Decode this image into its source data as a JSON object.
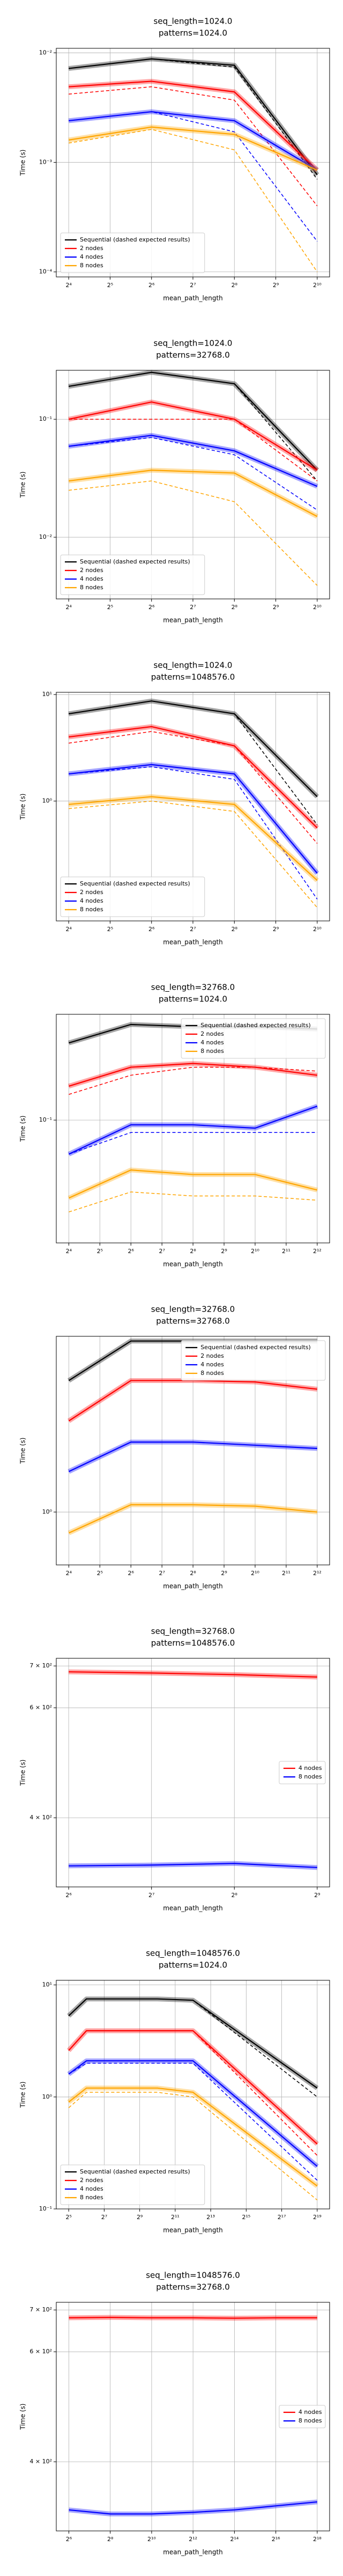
{
  "chart_data": [
    {
      "type": "line",
      "title": "seq_length=1024.0",
      "subtitle": "patterns=1024.0",
      "xlabel": "mean_path_length",
      "ylabel": "Time (s)",
      "xscale": "log",
      "yscale": "log",
      "grid": true,
      "legend": "lower left",
      "x": [
        16,
        64,
        256,
        1024
      ],
      "xlim": [
        13,
        1260
      ],
      "xticks": [
        {
          "value": 16,
          "label": "2⁴"
        },
        {
          "value": 32,
          "label": "2⁵"
        },
        {
          "value": 64,
          "label": "2⁶"
        },
        {
          "value": 128,
          "label": "2⁷"
        },
        {
          "value": 256,
          "label": "2⁸"
        },
        {
          "value": 512,
          "label": "2⁹"
        },
        {
          "value": 1024,
          "label": "2¹⁰"
        }
      ],
      "ylim": [
        9e-05,
        0.011
      ],
      "yticks": [
        {
          "value": 0.0001,
          "label": "10⁻⁴"
        },
        {
          "value": 0.001,
          "label": "10⁻³"
        },
        {
          "value": 0.01,
          "label": "10⁻²"
        }
      ],
      "series": [
        {
          "name": "Sequential (dashed expected results)",
          "color": "#000000",
          "values": [
            0.0072,
            0.0088,
            0.0077,
            0.00077
          ],
          "expected": [
            0.0072,
            0.0088,
            0.0074,
            0.0007
          ]
        },
        {
          "name": "2 nodes",
          "color": "#ff0000",
          "values": [
            0.0049,
            0.0055,
            0.0044,
            0.00085
          ],
          "expected": [
            0.0042,
            0.0049,
            0.0037,
            0.0004
          ]
        },
        {
          "name": "4 nodes",
          "color": "#0000ff",
          "values": [
            0.0024,
            0.0029,
            0.0024,
            0.00085
          ],
          "expected": [
            0.0024,
            0.0029,
            0.0019,
            0.00019
          ]
        },
        {
          "name": "8 nodes",
          "color": "#ffa500",
          "values": [
            0.0016,
            0.0021,
            0.0018,
            0.00085
          ],
          "expected": [
            0.0015,
            0.002,
            0.0013,
            0.0001
          ]
        }
      ]
    },
    {
      "type": "line",
      "title": "seq_length=1024.0",
      "subtitle": "patterns=32768.0",
      "xlabel": "mean_path_length",
      "ylabel": "Time (s)",
      "xscale": "log",
      "yscale": "log",
      "grid": true,
      "legend": "lower left",
      "x": [
        16,
        64,
        256,
        1024
      ],
      "xlim": [
        13,
        1260
      ],
      "xticks": [
        {
          "value": 16,
          "label": "2⁴"
        },
        {
          "value": 32,
          "label": "2⁵"
        },
        {
          "value": 64,
          "label": "2⁶"
        },
        {
          "value": 128,
          "label": "2⁷"
        },
        {
          "value": 256,
          "label": "2⁸"
        },
        {
          "value": 512,
          "label": "2⁹"
        },
        {
          "value": 1024,
          "label": "2¹⁰"
        }
      ],
      "ylim": [
        0.003,
        0.26
      ],
      "yticks": [
        {
          "value": 0.01,
          "label": "10⁻²"
        },
        {
          "value": 0.1,
          "label": "10⁻¹"
        }
      ],
      "series": [
        {
          "name": "Sequential (dashed expected results)",
          "color": "#000000",
          "values": [
            0.19,
            0.25,
            0.2,
            0.037
          ],
          "expected": [
            0.19,
            0.25,
            0.2,
            0.03
          ]
        },
        {
          "name": "2 nodes",
          "color": "#ff0000",
          "values": [
            0.1,
            0.14,
            0.1,
            0.037
          ],
          "expected": [
            0.1,
            0.1,
            0.1,
            0.03
          ]
        },
        {
          "name": "4 nodes",
          "color": "#0000ff",
          "values": [
            0.059,
            0.073,
            0.054,
            0.027
          ],
          "expected": [
            0.059,
            0.07,
            0.05,
            0.017
          ]
        },
        {
          "name": "8 nodes",
          "color": "#ffa500",
          "values": [
            0.03,
            0.037,
            0.035,
            0.015
          ],
          "expected": [
            0.025,
            0.03,
            0.02,
            0.0039
          ]
        }
      ]
    },
    {
      "type": "line",
      "title": "seq_length=1024.0",
      "subtitle": "patterns=1048576.0",
      "xlabel": "mean_path_length",
      "ylabel": "Time (s)",
      "xscale": "log",
      "yscale": "log",
      "grid": true,
      "legend": "lower left",
      "x": [
        16,
        64,
        256,
        1024
      ],
      "xlim": [
        13,
        1260
      ],
      "xticks": [
        {
          "value": 16,
          "label": "2⁴"
        },
        {
          "value": 32,
          "label": "2⁵"
        },
        {
          "value": 64,
          "label": "2⁶"
        },
        {
          "value": 128,
          "label": "2⁷"
        },
        {
          "value": 256,
          "label": "2⁸"
        },
        {
          "value": 512,
          "label": "2⁹"
        },
        {
          "value": 1024,
          "label": "2¹⁰"
        }
      ],
      "ylim": [
        0.075,
        10.5
      ],
      "yticks": [
        {
          "value": 1,
          "label": "10⁰"
        },
        {
          "value": 10,
          "label": "10¹"
        }
      ],
      "series": [
        {
          "name": "Sequential (dashed expected results)",
          "color": "#000000",
          "values": [
            6.6,
            8.7,
            6.6,
            1.1
          ],
          "expected": [
            6.6,
            8.7,
            6.6,
            0.6
          ]
        },
        {
          "name": "2 nodes",
          "color": "#ff0000",
          "values": [
            4,
            5,
            3.3,
            0.56
          ],
          "expected": [
            3.5,
            4.5,
            3.3,
            0.4
          ]
        },
        {
          "name": "4 nodes",
          "color": "#0000ff",
          "values": [
            1.8,
            2.2,
            1.8,
            0.21
          ],
          "expected": [
            1.8,
            2.1,
            1.6,
            0.12
          ]
        },
        {
          "name": "8 nodes",
          "color": "#ffa500",
          "values": [
            0.93,
            1.1,
            0.93,
            0.18
          ],
          "expected": [
            0.85,
            1,
            0.8,
            0.1
          ]
        }
      ]
    },
    {
      "type": "line",
      "title": "seq_length=32768.0",
      "subtitle": "patterns=1024.0",
      "xlabel": "mean_path_length",
      "ylabel": "Time (s)",
      "xscale": "log",
      "yscale": "log",
      "grid": true,
      "legend": "upper right",
      "x": [
        16,
        64,
        256,
        1024,
        4096
      ],
      "xlim": [
        12.1,
        5400
      ],
      "xticks": [
        {
          "value": 16,
          "label": "2⁴"
        },
        {
          "value": 32,
          "label": "2⁵"
        },
        {
          "value": 64,
          "label": "2⁶"
        },
        {
          "value": 128,
          "label": "2⁷"
        },
        {
          "value": 256,
          "label": "2⁸"
        },
        {
          "value": 512,
          "label": "2⁹"
        },
        {
          "value": 1024,
          "label": "2¹⁰"
        },
        {
          "value": 2048,
          "label": "2¹¹"
        },
        {
          "value": 4096,
          "label": "2¹²"
        }
      ],
      "ylim": [
        0.02,
        0.4
      ],
      "yticks": [
        {
          "value": 0.1,
          "label": "10⁻¹"
        }
      ],
      "series": [
        {
          "name": "Sequential (dashed expected results)",
          "color": "#000000",
          "values": [
            0.275,
            0.35,
            0.34,
            0.34,
            0.33
          ],
          "expected": [
            0.275,
            0.35,
            0.34,
            0.34,
            0.33
          ]
        },
        {
          "name": "2 nodes",
          "color": "#ff0000",
          "values": [
            0.156,
            0.2,
            0.21,
            0.2,
            0.18
          ],
          "expected": [
            0.14,
            0.18,
            0.2,
            0.2,
            0.19
          ]
        },
        {
          "name": "4 nodes",
          "color": "#0000ff",
          "values": [
            0.064,
            0.094,
            0.094,
            0.09,
            0.12
          ],
          "expected": [
            0.064,
            0.085,
            0.085,
            0.085,
            0.085
          ]
        },
        {
          "name": "8 nodes",
          "color": "#ffa500",
          "values": [
            0.036,
            0.052,
            0.049,
            0.049,
            0.04
          ],
          "expected": [
            0.03,
            0.039,
            0.037,
            0.037,
            0.035
          ]
        }
      ]
    },
    {
      "type": "line",
      "title": "seq_length=32768.0",
      "subtitle": "patterns=32768.0",
      "xlabel": "mean_path_length",
      "ylabel": "Time (s)",
      "xscale": "log",
      "yscale": "log",
      "grid": true,
      "legend": "upper right",
      "x": [
        16,
        64,
        256,
        1024,
        4096
      ],
      "xlim": [
        12.1,
        5400
      ],
      "xticks": [
        {
          "value": 16,
          "label": "2⁴"
        },
        {
          "value": 32,
          "label": "2⁵"
        },
        {
          "value": 64,
          "label": "2⁶"
        },
        {
          "value": 128,
          "label": "2⁷"
        },
        {
          "value": 256,
          "label": "2⁸"
        },
        {
          "value": 512,
          "label": "2⁹"
        },
        {
          "value": 1024,
          "label": "2¹⁰"
        },
        {
          "value": 2048,
          "label": "2¹¹"
        },
        {
          "value": 4096,
          "label": "2¹²"
        }
      ],
      "ylim": [
        0.5,
        10
      ],
      "yticks": [
        {
          "value": 1,
          "label": "10⁰"
        }
      ],
      "series": [
        {
          "name": "Sequential (dashed expected results)",
          "color": "#000000",
          "values": [
            5.6,
            9.4,
            9.4,
            9.4,
            9.4
          ]
        },
        {
          "name": "2 nodes",
          "color": "#ff0000",
          "values": [
            3.3,
            5.6,
            5.6,
            5.5,
            5
          ]
        },
        {
          "name": "4 nodes",
          "color": "#0000ff",
          "values": [
            1.7,
            2.5,
            2.5,
            2.4,
            2.3
          ]
        },
        {
          "name": "8 nodes",
          "color": "#ffa500",
          "values": [
            0.76,
            1.1,
            1.1,
            1.08,
            1
          ]
        }
      ]
    },
    {
      "type": "line",
      "title": "seq_length=32768.0",
      "subtitle": "patterns=1048576.0",
      "xlabel": "mean_path_length",
      "ylabel": "Time (s)",
      "xscale": "log",
      "yscale": "log",
      "grid": true,
      "legend": "center right",
      "x": [
        64,
        128,
        256,
        512
      ],
      "xlim": [
        57.7,
        568
      ],
      "xticks": [
        {
          "value": 64,
          "label": "2⁶"
        },
        {
          "value": 128,
          "label": "2⁷"
        },
        {
          "value": 256,
          "label": "2⁸"
        },
        {
          "value": 512,
          "label": "2⁹"
        }
      ],
      "ylim": [
        310,
        720
      ],
      "yticks": [
        {
          "value": 400,
          "label": "4 × 10²"
        },
        {
          "value": 600,
          "label": "6 × 10²"
        },
        {
          "value": 700,
          "label": "7 × 10²"
        }
      ],
      "series": [
        {
          "name": "4 nodes",
          "color": "#ff0000",
          "values": [
            685,
            682,
            678,
            672
          ]
        },
        {
          "name": "8 nodes",
          "color": "#0000ff",
          "values": [
            335,
            336,
            338,
            333
          ]
        }
      ]
    },
    {
      "type": "line",
      "title": "seq_length=1048576.0",
      "subtitle": "patterns=1024.0",
      "xlabel": "mean_path_length",
      "ylabel": "Time (s)",
      "xscale": "log",
      "yscale": "log",
      "grid": true,
      "legend": "lower left",
      "x": [
        32,
        64,
        1024,
        4096,
        524288
      ],
      "xlim": [
        19.7,
        851000
      ],
      "xticks": [
        {
          "value": 32,
          "label": "2⁵"
        },
        {
          "value": 128,
          "label": "2⁷"
        },
        {
          "value": 512,
          "label": "2⁹"
        },
        {
          "value": 2048,
          "label": "2¹¹"
        },
        {
          "value": 8192,
          "label": "2¹³"
        },
        {
          "value": 32768,
          "label": "2¹⁵"
        },
        {
          "value": 131072,
          "label": "2¹⁷"
        },
        {
          "value": 524288,
          "label": "2¹⁹"
        }
      ],
      "ylim": [
        0.1,
        11
      ],
      "yticks": [
        {
          "value": 0.1,
          "label": "10⁻¹"
        },
        {
          "value": 1,
          "label": "10⁰"
        },
        {
          "value": 10,
          "label": "10¹"
        }
      ],
      "series": [
        {
          "name": "Sequential (dashed expected results)",
          "color": "#000000",
          "values": [
            5.3,
            7.5,
            7.5,
            7.3,
            1.2
          ],
          "expected": [
            5.3,
            7.5,
            7.5,
            7.3,
            1
          ]
        },
        {
          "name": "2 nodes",
          "color": "#ff0000",
          "values": [
            2.6,
            3.9,
            3.9,
            3.9,
            0.38
          ],
          "expected": [
            2.6,
            3.9,
            3.9,
            3.9,
            0.3
          ]
        },
        {
          "name": "4 nodes",
          "color": "#0000ff",
          "values": [
            1.6,
            2.1,
            2.1,
            2.1,
            0.24
          ],
          "expected": [
            1.6,
            2,
            2,
            2,
            0.18
          ]
        },
        {
          "name": "8 nodes",
          "color": "#ffa500",
          "values": [
            0.9,
            1.2,
            1.2,
            1.1,
            0.16
          ],
          "expected": [
            0.8,
            1.1,
            1.1,
            1,
            0.12
          ]
        }
      ]
    },
    {
      "type": "line",
      "title": "seq_length=1048576.0",
      "subtitle": "patterns=32768.0",
      "xlabel": "mean_path_length",
      "ylabel": "Time (s)",
      "xscale": "log",
      "yscale": "log",
      "grid": true,
      "legend": "center right",
      "x": [
        64,
        256,
        1024,
        4096,
        16384,
        65536,
        262144
      ],
      "xlim": [
        42,
        397000
      ],
      "xticks": [
        {
          "value": 64,
          "label": "2⁶"
        },
        {
          "value": 256,
          "label": "2⁸"
        },
        {
          "value": 1024,
          "label": "2¹⁰"
        },
        {
          "value": 4096,
          "label": "2¹²"
        },
        {
          "value": 16384,
          "label": "2¹⁴"
        },
        {
          "value": 65536,
          "label": "2¹⁶"
        },
        {
          "value": 262144,
          "label": "2¹⁸"
        }
      ],
      "ylim": [
        310,
        720
      ],
      "yticks": [
        {
          "value": 400,
          "label": "4 × 10²"
        },
        {
          "value": 600,
          "label": "6 × 10²"
        },
        {
          "value": 700,
          "label": "7 × 10²"
        }
      ],
      "series": [
        {
          "name": "4 nodes",
          "color": "#ff0000",
          "values": [
            680,
            681,
            680,
            680,
            679,
            680,
            680
          ]
        },
        {
          "name": "8 nodes",
          "color": "#0000ff",
          "values": [
            335,
            330,
            330,
            332,
            335,
            340,
            345
          ]
        }
      ]
    }
  ]
}
